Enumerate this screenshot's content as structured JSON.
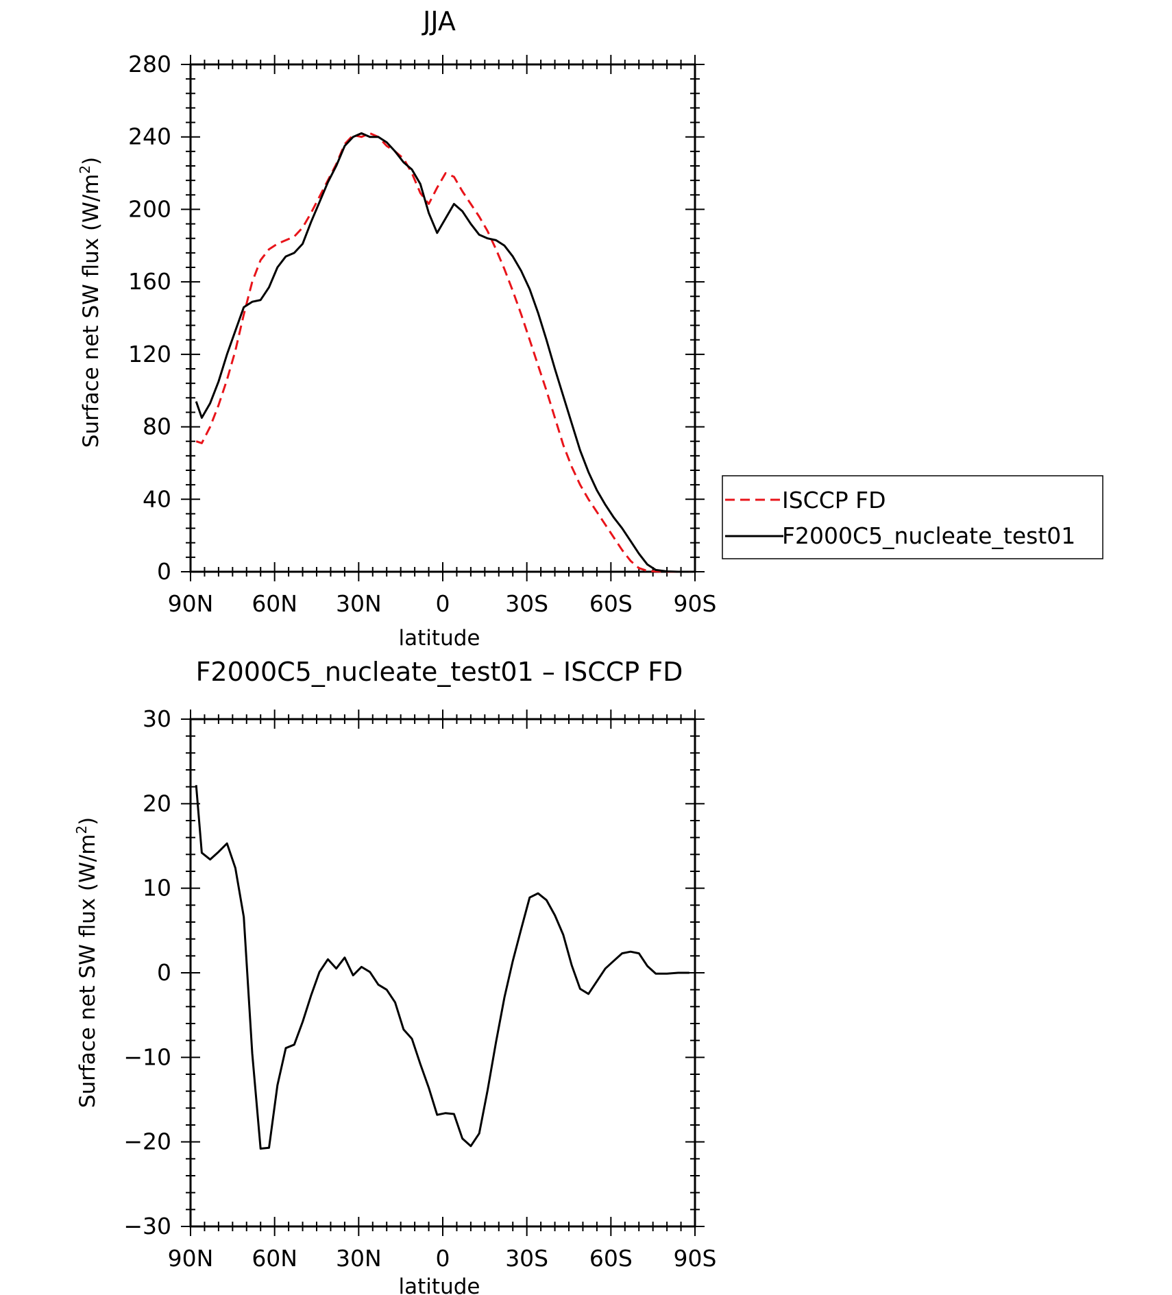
{
  "chart_data": [
    {
      "type": "line",
      "title": "JJA",
      "xlabel": "latitude",
      "ylabel": "Surface net SW flux (W/m",
      "ylabel_sup": "2",
      "ylabel_end": ")",
      "xlim": [
        90,
        -90
      ],
      "ylim": [
        0,
        280
      ],
      "x_ticks": [
        90,
        60,
        30,
        0,
        -30,
        -60,
        -90
      ],
      "x_tick_labels": [
        "90N",
        "60N",
        "30N",
        "0",
        "30S",
        "60S",
        "90S"
      ],
      "y_ticks": [
        0,
        40,
        80,
        120,
        160,
        200,
        240,
        280
      ],
      "y_tick_labels": [
        "0",
        "40",
        "80",
        "120",
        "160",
        "200",
        "240",
        "280"
      ],
      "legend": {
        "placement": "right",
        "entries": [
          "ISCCP FD",
          "F2000C5_nucleate_test01"
        ]
      },
      "series": [
        {
          "name": "ISCCP FD",
          "color": "#e8141a",
          "dash": true,
          "x": [
            88,
            86,
            83,
            80,
            77,
            74,
            71,
            68,
            65,
            62,
            59,
            56,
            53,
            50,
            47,
            44,
            41,
            38,
            35,
            32,
            29,
            26,
            23,
            20,
            17,
            14,
            11,
            8,
            5,
            2,
            -1,
            -4,
            -7,
            -10,
            -13,
            -16,
            -19,
            -22,
            -25,
            -28,
            -31,
            -34,
            -37,
            -40,
            -43,
            -46,
            -49,
            -52,
            -55,
            -58,
            -61,
            -64,
            -67,
            -70,
            -73,
            -76,
            -80,
            -84,
            -88
          ],
          "y": [
            72,
            71,
            80,
            92,
            106,
            122,
            142,
            160,
            172,
            178,
            181,
            183,
            185,
            190,
            198,
            207,
            216,
            225,
            236,
            241,
            240,
            242,
            240,
            235,
            232,
            228,
            220,
            209,
            203,
            212,
            220,
            218,
            210,
            203,
            196,
            188,
            178,
            167,
            155,
            142,
            128,
            114,
            100,
            85,
            70,
            58,
            48,
            40,
            33,
            26,
            19,
            12,
            6,
            2,
            0.5,
            0.2,
            0,
            0,
            0
          ]
        },
        {
          "name": "F2000C5_nucleate_test01",
          "color": "#000000",
          "dash": false,
          "x": [
            88,
            86,
            83,
            80,
            77,
            74,
            71,
            68,
            65,
            62,
            59,
            56,
            53,
            50,
            47,
            44,
            41,
            38,
            35,
            32,
            29,
            26,
            23,
            20,
            17,
            14,
            11,
            8,
            5,
            2,
            -1,
            -4,
            -7,
            -10,
            -13,
            -16,
            -19,
            -22,
            -25,
            -28,
            -31,
            -34,
            -37,
            -40,
            -43,
            -46,
            -49,
            -52,
            -55,
            -58,
            -61,
            -64,
            -67,
            -70,
            -73,
            -76,
            -80,
            -84,
            -88
          ],
          "y": [
            94,
            85,
            93,
            105,
            120,
            133,
            146,
            149,
            150,
            157,
            168,
            174,
            176,
            181,
            193,
            204,
            215,
            224,
            235,
            240,
            242,
            240,
            240,
            237,
            232,
            226,
            222,
            214,
            198,
            187,
            195,
            203,
            199,
            192,
            186,
            184,
            183,
            180,
            174,
            166,
            156,
            143,
            128,
            112,
            97,
            82,
            67,
            55,
            45,
            37,
            30,
            24,
            17,
            10,
            4,
            1,
            0.2,
            0,
            0
          ]
        }
      ]
    },
    {
      "type": "line",
      "title": "F2000C5_nucleate_test01 – ISCCP FD",
      "xlabel": "latitude",
      "ylabel": "Surface net SW flux (W/m",
      "ylabel_sup": "2",
      "ylabel_end": ")",
      "xlim": [
        90,
        -90
      ],
      "ylim": [
        -30,
        30
      ],
      "x_ticks": [
        90,
        60,
        30,
        0,
        -30,
        -60,
        -90
      ],
      "x_tick_labels": [
        "90N",
        "60N",
        "30N",
        "0",
        "30S",
        "60S",
        "90S"
      ],
      "y_ticks": [
        -30,
        -20,
        -10,
        0,
        10,
        20,
        30
      ],
      "y_tick_labels": [
        "−30",
        "−20",
        "−10",
        "0",
        "10",
        "20",
        "30"
      ],
      "series": [
        {
          "color": "#000000",
          "dash": false,
          "x": [
            88,
            86,
            83,
            80,
            77,
            74,
            71,
            68,
            65,
            62,
            59,
            56,
            53,
            50,
            47,
            44,
            41,
            38,
            35,
            32,
            29,
            26,
            23,
            20,
            17,
            14,
            11,
            8,
            5,
            2,
            -1,
            -4,
            -7,
            -10,
            -13,
            -16,
            -19,
            -22,
            -25,
            -28,
            -31,
            -34,
            -37,
            -40,
            -43,
            -46,
            -49,
            -52,
            -55,
            -58,
            -61,
            -64,
            -67,
            -70,
            -73,
            -76,
            -80,
            -84,
            -88
          ],
          "y": [
            22.2,
            14.2,
            13.4,
            14.3,
            15.3,
            12.4,
            6.6,
            -9.5,
            -20.8,
            -20.7,
            -13.3,
            -8.9,
            -8.5,
            -5.8,
            -2.7,
            0.1,
            1.6,
            0.5,
            1.8,
            -0.3,
            0.7,
            0.1,
            -1.4,
            -2.0,
            -3.5,
            -6.7,
            -7.8,
            -10.8,
            -13.6,
            -16.8,
            -16.6,
            -16.7,
            -19.6,
            -20.5,
            -19.0,
            -13.9,
            -8.2,
            -2.9,
            1.4,
            5.2,
            8.9,
            9.4,
            8.6,
            6.8,
            4.5,
            0.9,
            -1.9,
            -2.5,
            -1.0,
            0.5,
            1.4,
            2.3,
            2.5,
            2.3,
            0.8,
            -0.1,
            -0.1,
            0,
            0
          ]
        }
      ]
    }
  ]
}
